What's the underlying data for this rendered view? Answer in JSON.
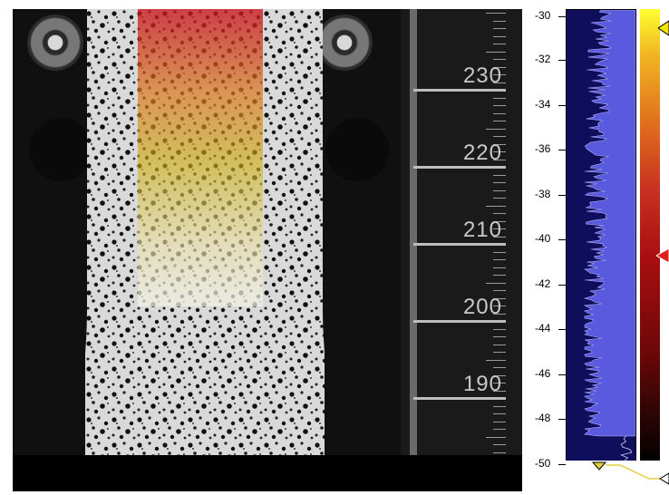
{
  "ruler": {
    "labels": [
      "230",
      "220",
      "210",
      "200",
      "190"
    ]
  },
  "axis": {
    "labels": [
      "-30",
      "-32",
      "-34",
      "-36",
      "-38",
      "-40",
      "-42",
      "-44",
      "-46",
      "-48",
      "-50"
    ]
  },
  "colors": {
    "roi_top": "#c8141e",
    "roi_bottom": "#ebe1aa",
    "histogram_bg": "#0e0e5c",
    "histogram_fill": "#5a5ade",
    "marker_top": "#f2e600",
    "marker_mid": "#e02020",
    "pointer_line": "#e0d040"
  },
  "icons": [
    "top-slider-marker-icon",
    "current-value-marker-icon",
    "bottom-slider-marker-icon"
  ]
}
